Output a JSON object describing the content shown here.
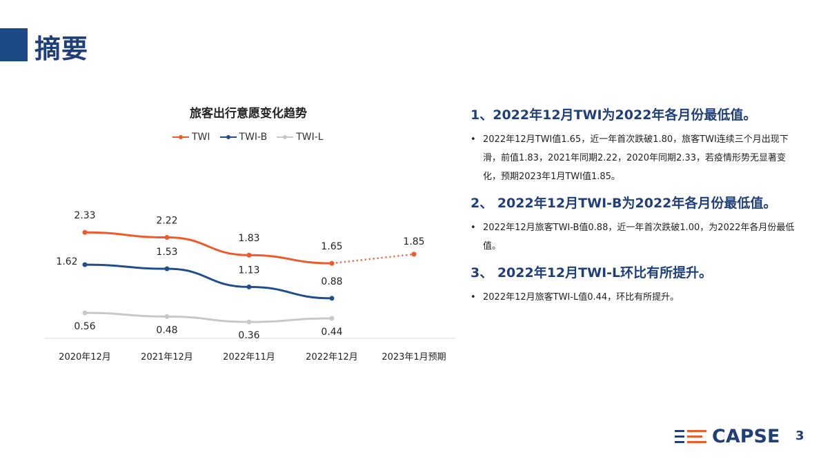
{
  "header": {
    "title": "摘要"
  },
  "chart_data": {
    "type": "line",
    "title": "旅客出行意愿变化趋势",
    "categories": [
      "2020年12月",
      "2021年12月",
      "2022年11月",
      "2022年12月",
      "2023年1月预期"
    ],
    "series": [
      {
        "name": "TWI",
        "color": "#F05A28",
        "values": [
          2.33,
          2.22,
          1.83,
          1.65,
          1.85
        ],
        "forecast_from_index": 3
      },
      {
        "name": "TWI-B",
        "color": "#1F4E8C",
        "values": [
          1.62,
          1.53,
          1.13,
          0.88,
          null
        ]
      },
      {
        "name": "TWI-L",
        "color": "#C8C8C8",
        "values": [
          0.56,
          0.48,
          0.36,
          0.44,
          null
        ]
      }
    ],
    "data_labels": true,
    "grid": false,
    "legend": "top"
  },
  "points": [
    {
      "heading": "1、2022年12月TWI为2022年各月份最低值。",
      "bullets": [
        "2022年12月TWI值1.65，近一年首次跌破1.80，旅客TWI连续三个月出现下滑，前值1.83，2021年同期2.22，2020年同期2.33，若疫情形势无显著变化，预期2023年1月TWI值1.85。"
      ]
    },
    {
      "heading": "2、 2022年12月TWI-B为2022年各月份最低值。",
      "bullets": [
        "2022年12月旅客TWI-B值0.88，近一年首次跌破1.00，为2022年各月份最低值。"
      ]
    },
    {
      "heading": "3、 2022年12月TWI-L环比有所提升。",
      "bullets": [
        "2022年12月旅客TWI-L值0.44，环比有所提升。"
      ]
    }
  ],
  "footer": {
    "logo": "CAPSE",
    "page": "3"
  }
}
